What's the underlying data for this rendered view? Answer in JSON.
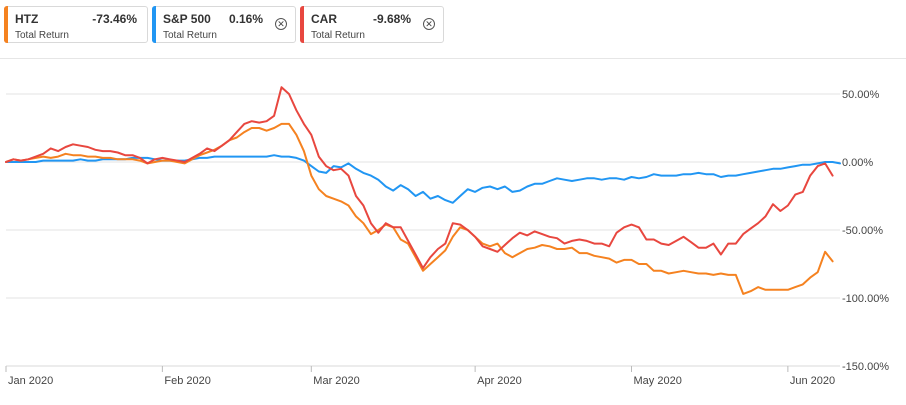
{
  "legend": [
    {
      "symbol": "HTZ",
      "value": "-73.46%",
      "sub": "Total Return",
      "color": "#f58220",
      "closable": false
    },
    {
      "symbol": "S&P 500",
      "value": "0.16%",
      "sub": "Total Return",
      "color": "#2196f3",
      "closable": true
    },
    {
      "symbol": "CAR",
      "value": "-9.68%",
      "sub": "Total Return",
      "color": "#e8473f",
      "closable": true
    }
  ],
  "chart_data": {
    "type": "line",
    "ylim": [
      -150,
      75
    ],
    "yticks": [
      50,
      0,
      -50,
      -100,
      -150
    ],
    "ytick_labels": [
      "50.00%",
      "0.00%",
      "-50.00%",
      "-100.00%",
      "-150.00%"
    ],
    "xticks": [
      0,
      21,
      41,
      63,
      84,
      105
    ],
    "xtick_labels": [
      "Jan 2020",
      "Feb 2020",
      "Mar 2020",
      "Apr 2020",
      "May 2020",
      "Jun 2020"
    ],
    "xlim": [
      0,
      112
    ],
    "grid": true,
    "series": [
      {
        "name": "S&P 500",
        "color": "#2196f3",
        "values": [
          0,
          0,
          0,
          0,
          0,
          1,
          1,
          1,
          1,
          1,
          2,
          1,
          1,
          2,
          2,
          2,
          2,
          3,
          3,
          3,
          2,
          1,
          1,
          1,
          1,
          2,
          3,
          3,
          4,
          4,
          4,
          4,
          4,
          4,
          4,
          4,
          5,
          4,
          4,
          3,
          1,
          -3,
          -7,
          -8,
          -3,
          -4,
          -1,
          -5,
          -8,
          -10,
          -13,
          -18,
          -21,
          -17,
          -20,
          -25,
          -22,
          -27,
          -25,
          -28,
          -30,
          -25,
          -20,
          -22,
          -19,
          -18,
          -20,
          -18,
          -22,
          -21,
          -18,
          -16,
          -16,
          -14,
          -12,
          -13,
          -14,
          -13,
          -12,
          -12,
          -13,
          -12,
          -12,
          -13,
          -11,
          -12,
          -11,
          -9,
          -10,
          -10,
          -10,
          -9,
          -9,
          -8,
          -9,
          -9,
          -11,
          -10,
          -10,
          -9,
          -8,
          -7,
          -6,
          -5,
          -5,
          -4,
          -3,
          -2,
          -2,
          -1,
          0,
          0,
          -1
        ]
      },
      {
        "name": "HTZ",
        "color": "#f58220",
        "values": [
          0,
          2,
          1,
          2,
          3,
          4,
          3,
          4,
          6,
          5,
          5,
          4,
          4,
          3,
          3,
          2,
          2,
          2,
          1,
          -1,
          0,
          1,
          1,
          0,
          -1,
          2,
          5,
          7,
          9,
          12,
          16,
          18,
          22,
          25,
          25,
          23,
          25,
          28,
          28,
          20,
          8,
          -10,
          -20,
          -25,
          -27,
          -29,
          -32,
          -40,
          -45,
          -53,
          -50,
          -46,
          -48,
          -57,
          -60,
          -70,
          -80,
          -75,
          -70,
          -65,
          -55,
          -48,
          -50,
          -55,
          -60,
          -62,
          -60,
          -67,
          -70,
          -67,
          -64,
          -63,
          -61,
          -62,
          -64,
          -64,
          -63,
          -67,
          -67,
          -69,
          -70,
          -71,
          -74,
          -72,
          -72,
          -75,
          -75,
          -80,
          -80,
          -82,
          -81,
          -80,
          -81,
          -82,
          -82,
          -83,
          -82,
          -83,
          -83,
          -97,
          -95,
          -92,
          -94,
          -94,
          -94,
          -94,
          -92,
          -90,
          -85,
          -81,
          -66,
          -73
        ]
      },
      {
        "name": "CAR",
        "color": "#e8473f",
        "values": [
          0,
          2,
          1,
          2,
          4,
          6,
          10,
          8,
          11,
          13,
          12,
          11,
          9,
          8,
          8,
          7,
          5,
          5,
          3,
          -1,
          2,
          3,
          2,
          1,
          0,
          3,
          6,
          10,
          8,
          12,
          16,
          22,
          28,
          30,
          29,
          30,
          34,
          55,
          50,
          38,
          28,
          20,
          4,
          -3,
          -6,
          -5,
          -10,
          -25,
          -32,
          -45,
          -52,
          -45,
          -48,
          -48,
          -58,
          -68,
          -78,
          -70,
          -64,
          -60,
          -45,
          -46,
          -50,
          -55,
          -62,
          -64,
          -66,
          -61,
          -56,
          -52,
          -54,
          -51,
          -53,
          -55,
          -56,
          -60,
          -58,
          -57,
          -58,
          -60,
          -60,
          -62,
          -52,
          -48,
          -46,
          -48,
          -57,
          -57,
          -60,
          -61,
          -58,
          -55,
          -59,
          -63,
          -63,
          -60,
          -68,
          -60,
          -60,
          -53,
          -49,
          -45,
          -40,
          -31,
          -36,
          -32,
          -24,
          -22,
          -10,
          -3,
          -1,
          -10
        ]
      }
    ]
  }
}
